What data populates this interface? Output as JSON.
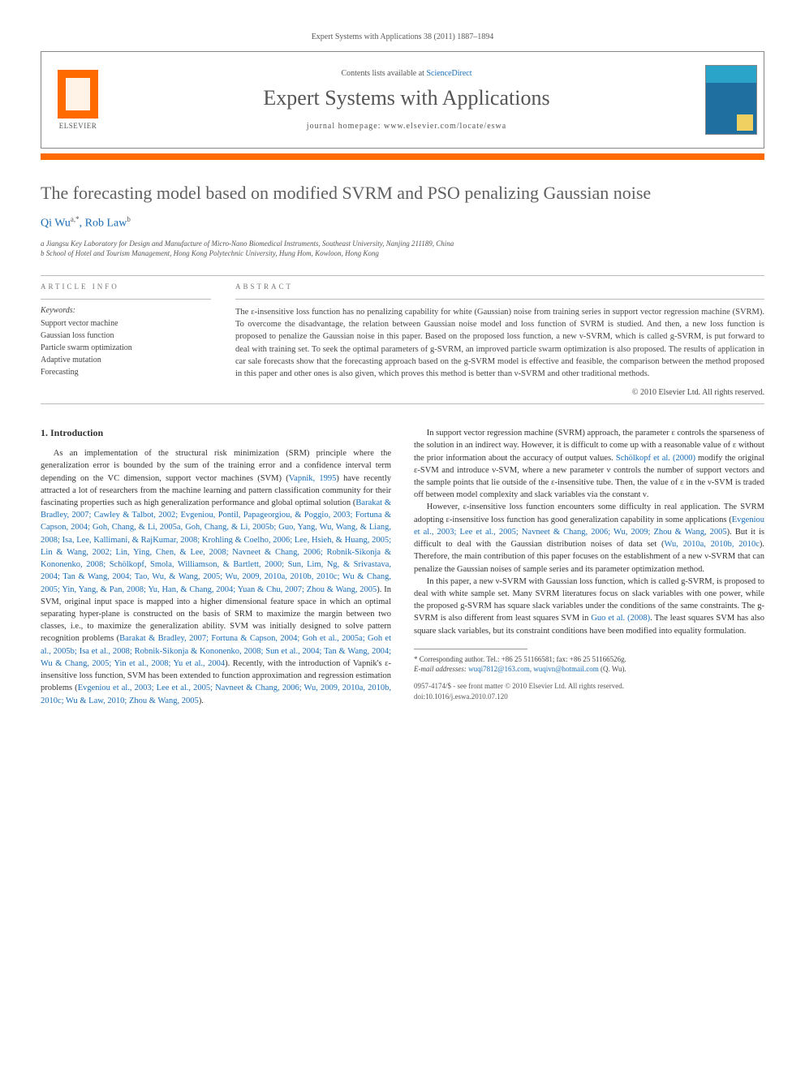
{
  "header": {
    "journal_ref": "Expert Systems with Applications 38 (2011) 1887–1894",
    "contents_prefix": "Contents lists available at ",
    "contents_link": "ScienceDirect",
    "journal_title": "Expert Systems with Applications",
    "homepage_prefix": "journal homepage: ",
    "homepage_url": "www.elsevier.com/locate/eswa",
    "publisher": "ELSEVIER"
  },
  "colors": {
    "accent": "#ff6a00",
    "link": "#1a6db5",
    "text": "#333333",
    "muted": "#555555"
  },
  "article": {
    "title": "The forecasting model based on modified SVRM and PSO penalizing Gaussian noise",
    "authors_html": "Qi Wu <sup>a,*</sup>, Rob Law <sup>b</sup>",
    "author1": "Qi Wu",
    "author1_sup": "a,*",
    "author2": "Rob Law",
    "author2_sup": "b",
    "affiliation_a": "a Jiangsu Key Laboratory for Design and Manufacture of Micro-Nano Biomedical Instruments, Southeast University, Nanjing 211189, China",
    "affiliation_b": "b School of Hotel and Tourism Management, Hong Kong Polytechnic University, Hung Hom, Kowloon, Hong Kong"
  },
  "article_info": {
    "label": "ARTICLE INFO",
    "keywords_label": "Keywords:",
    "keywords": [
      "Support vector machine",
      "Gaussian loss function",
      "Particle swarm optimization",
      "Adaptive mutation",
      "Forecasting"
    ]
  },
  "abstract": {
    "label": "ABSTRACT",
    "text": "The ε-insensitive loss function has no penalizing capability for white (Gaussian) noise from training series in support vector regression machine (SVRM). To overcome the disadvantage, the relation between Gaussian noise model and loss function of SVRM is studied. And then, a new loss function is proposed to penalize the Gaussian noise in this paper. Based on the proposed loss function, a new ν-SVRM, which is called g-SVRM, is put forward to deal with training set. To seek the optimal parameters of g-SVRM, an improved particle swarm optimization is also proposed. The results of application in car sale forecasts show that the forecasting approach based on the g-SVRM model is effective and feasible, the comparison between the method proposed in this paper and other ones is also given, which proves this method is better than ν-SVRM and other traditional methods.",
    "copyright": "© 2010 Elsevier Ltd. All rights reserved."
  },
  "body": {
    "section1_title": "1. Introduction",
    "p1_a": "As an implementation of the structural risk minimization (SRM) principle where the generalization error is bounded by the sum of the training error and a confidence interval term depending on the VC dimension, support vector machines (SVM) (",
    "p1_ref1": "Vapnik, 1995",
    "p1_b": ") have recently attracted a lot of researchers from the machine learning and pattern classification community for their fascinating properties such as high generalization performance and global optimal solution (",
    "p1_ref2": "Barakat & Bradley, 2007; Cawley & Talbot, 2002; Evgeniou, Pontil, Papageorgiou, & Poggio, 2003; Fortuna & Capson, 2004; Goh, Chang, & Li, 2005a, Goh, Chang, & Li, 2005b; Guo, Yang, Wu, Wang, & Liang, 2008; Isa, Lee, Kallimani, & RajKumar, 2008; Krohling & Coelho, 2006; Lee, Hsieh, & Huang, 2005; Lin & Wang, 2002; Lin, Ying, Chen, & Lee, 2008; Navneet & Chang, 2006; Robnik-Sikonja & Kononenko, 2008; Schölkopf, Smola, Williamson, & Bartlett, 2000; Sun, Lim, Ng, & Srivastava, 2004; Tan & Wang, 2004; Tao, Wu, & Wang, 2005; Wu, 2009, 2010a, 2010b, 2010c; Wu & Chang, 2005; Yin, Yang, & Pan, 2008; Yu, Han, & Chang, 2004; Yuan & Chu, 2007; Zhou & Wang, 2005",
    "p1_c": "). In SVM, original input space is mapped into a higher dimensional feature space in which an optimal separating hyper-plane is constructed on the basis of SRM to maximize the margin between two classes, i.e., to maximize the generalization ability. SVM was initially designed to solve pattern recognition problems (",
    "p1_ref3": "Barakat & Bradley, 2007; Fortuna & Capson, 2004; Goh et al., 2005a; Goh et al., 2005b; Isa et al., 2008; Robnik-Sikonja & Kononenko, 2008; Sun et al., 2004; Tan & Wang, 2004; Wu & Chang, 2005; Yin et al., 2008; Yu et al., 2004",
    "p1_d": "). Recently, with the introduction of Vapnik's ε-insensitive loss function, SVM has been extended to function approximation and regression estimation problems (",
    "p1_ref4": "Evgeniou et al., 2003; Lee et al., 2005; Navneet & Chang, 2006; Wu, 2009, 2010a, 2010b, 2010c; Wu & Law, 2010; Zhou & Wang, 2005",
    "p1_e": ").",
    "p2_a": "In support vector regression machine (SVRM) approach, the parameter ε controls the sparseness of the solution in an indirect way. However, it is difficult to come up with a reasonable value of ε without the prior information about the accuracy of output values. ",
    "p2_ref1": "Schölkopf et al. (2000)",
    "p2_b": " modify the original ε-SVM and introduce ν-SVM, where a new parameter ν controls the number of support vectors and the sample points that lie outside of the ε-insensitive tube. Then, the value of ε in the ν-SVM is traded off between model complexity and slack variables via the constant ν.",
    "p3_a": "However, ε-insensitive loss function encounters some difficulty in real application. The SVRM adopting ε-insensitive loss function has good generalization capability in some applications (",
    "p3_ref1": "Evgeniou et al., 2003; Lee et al., 2005; Navneet & Chang, 2006; Wu, 2009; Zhou & Wang, 2005",
    "p3_b": "). But it is difficult to deal with the Gaussian distribution noises of data set (",
    "p3_ref2": "Wu, 2010a, 2010b, 2010c",
    "p3_c": "). Therefore, the main contribution of this paper focuses on the establishment of a new ν-SVRM that can penalize the Gaussian noises of sample series and its parameter optimization method.",
    "p4_a": "In this paper, a new ν-SVRM with Gaussian loss function, which is called g-SVRM, is proposed to deal with white sample set. Many SVRM literatures focus on slack variables with one power, while the proposed g-SVRM has square slack variables under the conditions of the same constraints. The g-SVRM is also different from least squares SVM in ",
    "p4_ref1": "Guo et al. (2008)",
    "p4_b": ". The least squares SVM has also square slack variables, but its constraint conditions have been modified into equality formulation."
  },
  "footnote": {
    "corr": "* Corresponding author. Tel.: +86 25 51166581; fax: +86 25 51166526g.",
    "email_label": "E-mail addresses: ",
    "email1": "wuqi7812@163.com",
    "email2": "wuqivn@hotmail.com",
    "email_suffix": " (Q. Wu)."
  },
  "footer": {
    "line1": "0957-4174/$ - see front matter © 2010 Elsevier Ltd. All rights reserved.",
    "line2": "doi:10.1016/j.eswa.2010.07.120"
  }
}
